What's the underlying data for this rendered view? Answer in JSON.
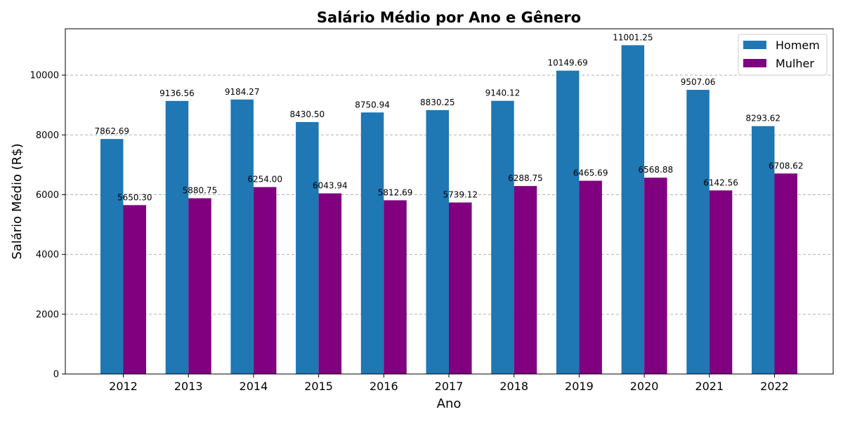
{
  "chart_data": {
    "type": "bar",
    "title": "Salário Médio por Ano e Gênero",
    "xlabel": "Ano",
    "ylabel": "Salário Médio (R$)",
    "categories": [
      "2012",
      "2013",
      "2014",
      "2015",
      "2016",
      "2017",
      "2018",
      "2019",
      "2020",
      "2021",
      "2022"
    ],
    "series": [
      {
        "name": "Homem",
        "color": "#1f77b4",
        "values": [
          7862.69,
          9136.56,
          9184.27,
          8430.5,
          8750.94,
          8830.25,
          9140.12,
          10149.69,
          11001.25,
          9507.06,
          8293.62
        ],
        "labels": [
          "7862.69",
          "9136.56",
          "9184.27",
          "8430.50",
          "8750.94",
          "8830.25",
          "9140.12",
          "10149.69",
          "11001.25",
          "9507.06",
          "8293.62"
        ]
      },
      {
        "name": "Mulher",
        "color": "#800080",
        "values": [
          5650.3,
          5880.75,
          6254.0,
          6043.94,
          5812.69,
          5739.12,
          6288.75,
          6465.69,
          6568.88,
          6142.56,
          6708.62
        ],
        "labels": [
          "5650.30",
          "5880.75",
          "6254.00",
          "6043.94",
          "5812.69",
          "5739.12",
          "6288.75",
          "6465.69",
          "6568.88",
          "6142.56",
          "6708.62"
        ]
      }
    ],
    "ylim": [
      0,
      11551
    ],
    "yticks": [
      0,
      2000,
      4000,
      6000,
      8000,
      10000
    ],
    "ytick_labels": [
      "0",
      "2000",
      "4000",
      "6000",
      "8000",
      "10000"
    ],
    "grid": "y-dashed",
    "legend_position": "top-right"
  }
}
